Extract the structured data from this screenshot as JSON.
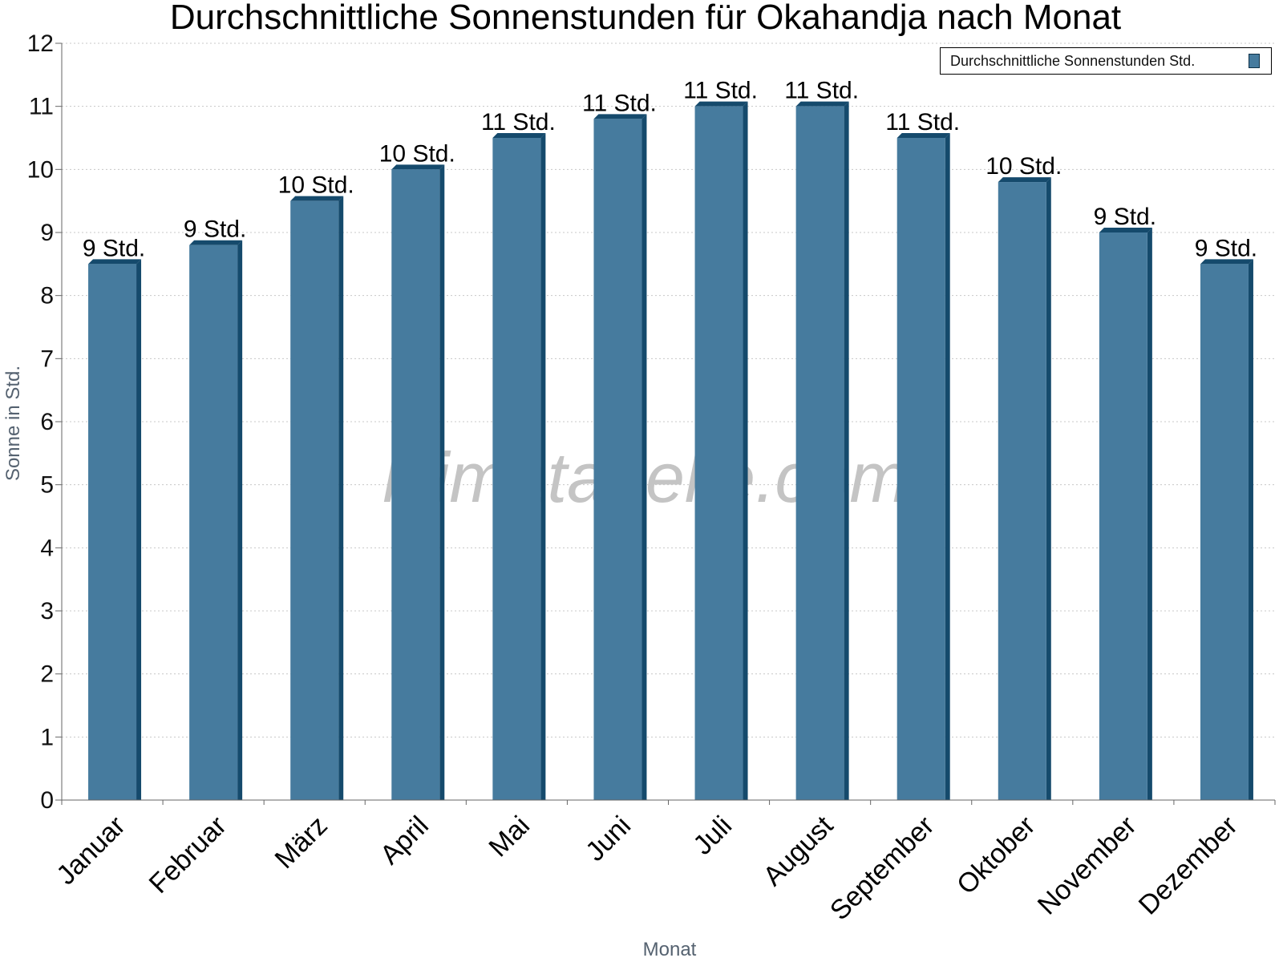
{
  "chart_data": {
    "type": "bar",
    "title": "Durchschnittliche Sonnenstunden für Okahandja nach Monat",
    "xlabel": "Monat",
    "ylabel": "Sonne in Std.",
    "ylim": [
      0,
      12
    ],
    "yticks": [
      "0",
      "1",
      "2",
      "3",
      "4",
      "5",
      "6",
      "7",
      "8",
      "9",
      "10",
      "11",
      "12"
    ],
    "grid": true,
    "legend": "top-right",
    "categories": [
      "Januar",
      "Februar",
      "März",
      "April",
      "Mai",
      "Juni",
      "Juli",
      "August",
      "September",
      "Oktober",
      "November",
      "Dezember"
    ],
    "series": [
      {
        "name": "Durchschnittliche Sonnenstunden Std.",
        "values": [
          8.5,
          8.8,
          9.5,
          10.0,
          10.5,
          10.8,
          11.0,
          11.0,
          10.5,
          9.8,
          9.0,
          8.5
        ],
        "labels": [
          "9 Std.",
          "9 Std.",
          "10 Std.",
          "10 Std.",
          "11 Std.",
          "11 Std.",
          "11 Std.",
          "11 Std.",
          "11 Std.",
          "10 Std.",
          "9 Std.",
          "9 Std."
        ]
      }
    ],
    "watermark": "klimatabelle.com",
    "colors": {
      "bar": "#467b9e",
      "bar_edge": "#154a6c"
    }
  }
}
